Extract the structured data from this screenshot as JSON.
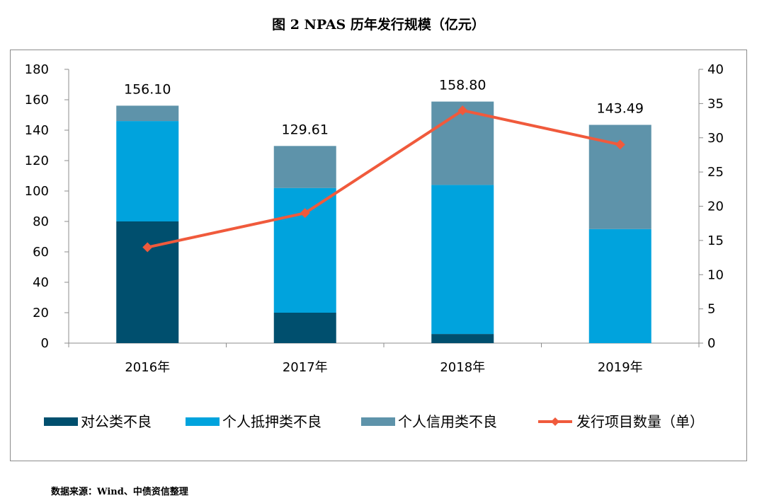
{
  "title": "图 2 NPAS 历年发行规模（亿元）",
  "source": "数据来源：Wind、中债资信整理",
  "chart_data": {
    "type": "bar",
    "stacked": true,
    "categories": [
      "2016年",
      "2017年",
      "2018年",
      "2019年"
    ],
    "series": [
      {
        "name": "对公类不良",
        "axis": "left",
        "color": "#004f6e",
        "values": [
          80,
          20,
          6,
          0
        ]
      },
      {
        "name": "个人抵押类不良",
        "axis": "left",
        "color": "#00a3dd",
        "values": [
          66,
          82,
          98,
          75
        ]
      },
      {
        "name": "个人信用类不良",
        "axis": "left",
        "color": "#5e93aa",
        "values": [
          10.1,
          27.61,
          54.8,
          68.49
        ]
      },
      {
        "name": "发行项目数量（单）",
        "axis": "right",
        "type": "line",
        "color": "#f05a3c",
        "values": [
          14,
          19,
          34,
          29
        ]
      }
    ],
    "totals": [
      "156.10",
      "129.61",
      "158.80",
      "143.49"
    ],
    "left_axis": {
      "ylim": [
        0,
        180
      ],
      "ticks": [
        "0",
        "20",
        "40",
        "60",
        "80",
        "100",
        "120",
        "140",
        "160",
        "180"
      ]
    },
    "right_axis": {
      "ylim": [
        0,
        40
      ],
      "ticks": [
        "0",
        "5",
        "10",
        "15",
        "20",
        "25",
        "30",
        "35",
        "40"
      ]
    },
    "grid": false,
    "legend_position": "bottom"
  }
}
